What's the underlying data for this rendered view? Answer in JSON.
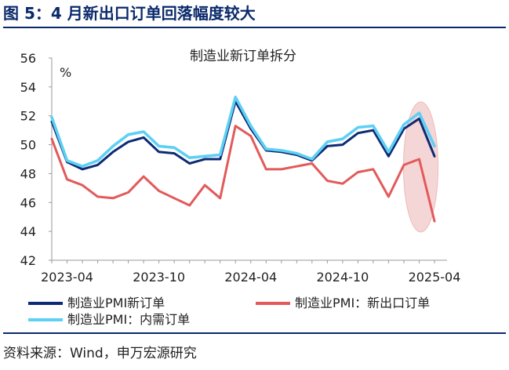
{
  "figure": {
    "title": "图 5：4 月新出口订单回落幅度较大",
    "source": "资料来源：Wind，申万宏源研究"
  },
  "chart_data": {
    "type": "line",
    "title": "制造业新订单拆分",
    "ylabel_unit": "%",
    "ylim": [
      42,
      56
    ],
    "yticks": [
      42,
      44,
      46,
      48,
      50,
      52,
      54,
      56
    ],
    "x_tick_labels": [
      "2023-04",
      "2023-10",
      "2024-04",
      "2024-10",
      "2025-04"
    ],
    "x_tick_dates": [
      "2023-04",
      "2023-10",
      "2024-04",
      "2024-10",
      "2025-04"
    ],
    "x": [
      "2023-03",
      "2023-04",
      "2023-05",
      "2023-06",
      "2023-07",
      "2023-08",
      "2023-09",
      "2023-10",
      "2023-11",
      "2023-12",
      "2024-01",
      "2024-02",
      "2024-03",
      "2024-04",
      "2024-05",
      "2024-06",
      "2024-07",
      "2024-08",
      "2024-09",
      "2024-10",
      "2024-11",
      "2024-12",
      "2025-01",
      "2025-02",
      "2025-03",
      "2025-04"
    ],
    "series": [
      {
        "name": "制造业PMI新订单",
        "color": "#0d2b74",
        "values": [
          51.6,
          48.8,
          48.3,
          48.6,
          49.5,
          50.2,
          50.5,
          49.5,
          49.4,
          48.7,
          49.0,
          49.0,
          53.0,
          51.1,
          49.6,
          49.5,
          49.3,
          48.9,
          49.9,
          50.0,
          50.8,
          51.0,
          49.2,
          51.1,
          51.8,
          49.2
        ]
      },
      {
        "name": "制造业PMI：新出口订单",
        "color": "#e35a5a",
        "values": [
          50.4,
          47.6,
          47.2,
          46.4,
          46.3,
          46.7,
          47.8,
          46.8,
          46.3,
          45.8,
          47.2,
          46.3,
          51.3,
          50.6,
          48.3,
          48.3,
          48.5,
          48.7,
          47.5,
          47.3,
          48.1,
          48.3,
          46.4,
          48.6,
          49.0,
          44.7
        ]
      },
      {
        "name": "制造业PMI：内需订单",
        "color": "#5ed0f4",
        "values": [
          51.9,
          48.9,
          48.5,
          48.9,
          49.9,
          50.7,
          50.9,
          49.9,
          49.8,
          49.1,
          49.2,
          49.3,
          53.3,
          51.3,
          49.7,
          49.6,
          49.4,
          49.0,
          50.2,
          50.4,
          51.2,
          51.3,
          49.5,
          51.4,
          52.2,
          49.9
        ]
      }
    ],
    "highlight": {
      "note": "ellipse around latest months",
      "color": "#f5d6d6"
    }
  }
}
